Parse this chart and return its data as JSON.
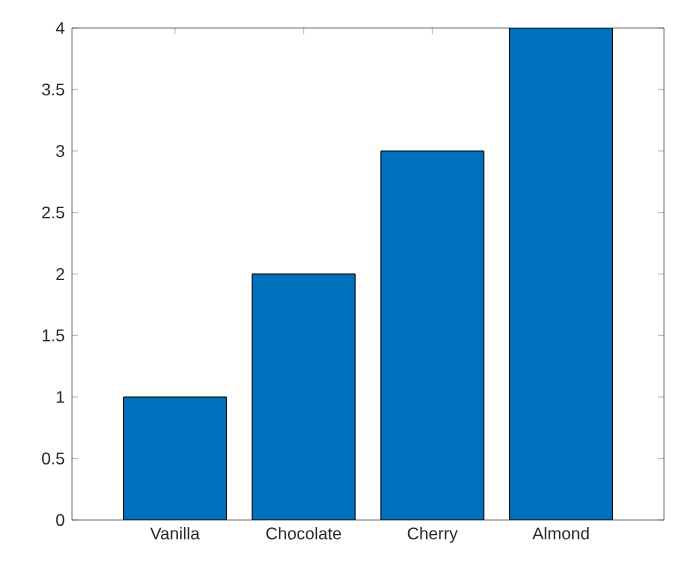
{
  "chart_data": {
    "type": "bar",
    "categories": [
      "Vanilla",
      "Chocolate",
      "Cherry",
      "Almond"
    ],
    "values": [
      1,
      2,
      3,
      4
    ],
    "color": "#0072bd",
    "ylim": [
      0,
      4
    ],
    "yticks": [
      0,
      0.5,
      1,
      1.5,
      2,
      2.5,
      3,
      3.5,
      4
    ],
    "grid": false
  }
}
